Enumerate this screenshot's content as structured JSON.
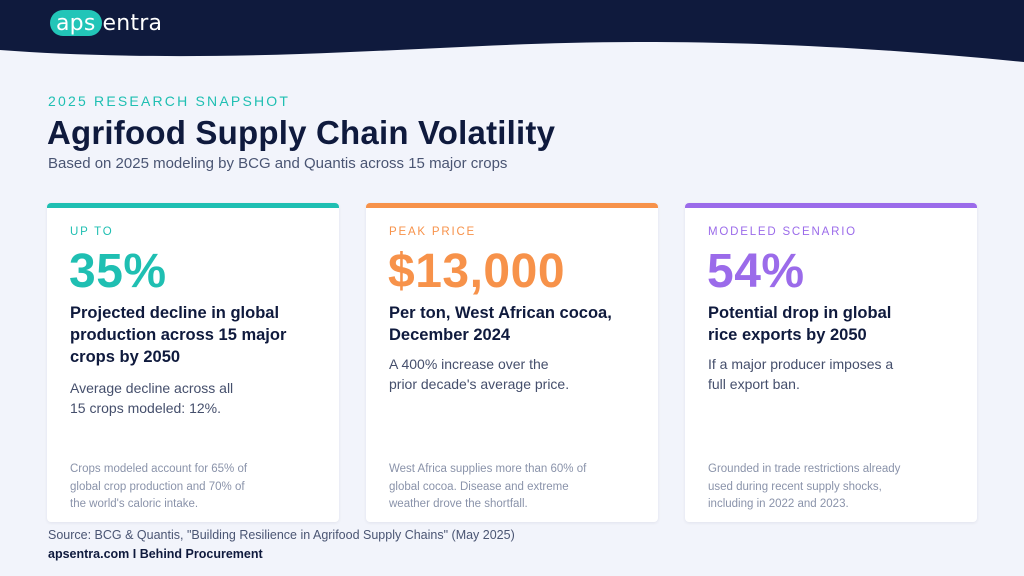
{
  "brand": {
    "logo_highlight": "aps",
    "logo_rest": "entra",
    "colors": {
      "navy": "#0f1a3d",
      "teal": "#1fbfb2",
      "orange": "#f7924a",
      "purple": "#9b6bea",
      "background": "#f2f4fb"
    }
  },
  "header": {
    "eyebrow": "2025 RESEARCH SNAPSHOT",
    "title": "Agrifood Supply Chain Volatility",
    "subtitle": "Based on 2025 modeling by BCG and Quantis across 15 major crops"
  },
  "cards": [
    {
      "label": "UP TO",
      "value": "35%",
      "headline": "Projected decline in global production across 15 major crops by 2050",
      "description": "Average decline across all 15 crops modeled: 12%.",
      "footnote": "Crops modeled account for 65% of global crop production and 70% of the world's caloric intake.",
      "accent": "#1fbfb2"
    },
    {
      "label": "PEAK PRICE",
      "value": "$13,000",
      "headline": "Per ton, West African cocoa, December 2024",
      "description": "A 400% increase over the prior decade's average price.",
      "footnote": "West Africa supplies more than 60% of global cocoa. Disease and extreme weather drove the shortfall.",
      "accent": "#f7924a"
    },
    {
      "label": "MODELED SCENARIO",
      "value": "54%",
      "headline": "Potential drop in global rice exports by 2050",
      "description": "If a major producer imposes a full export ban.",
      "footnote": "Grounded in trade restrictions already used during recent supply shocks, including in 2022 and 2023.",
      "accent": "#9b6bea"
    }
  ],
  "footer": {
    "source": "Source: BCG & Quantis, \"Building Resilience in Agrifood Supply Chains\" (May 2025)",
    "site": "apsentra.com I Behind Procurement"
  }
}
